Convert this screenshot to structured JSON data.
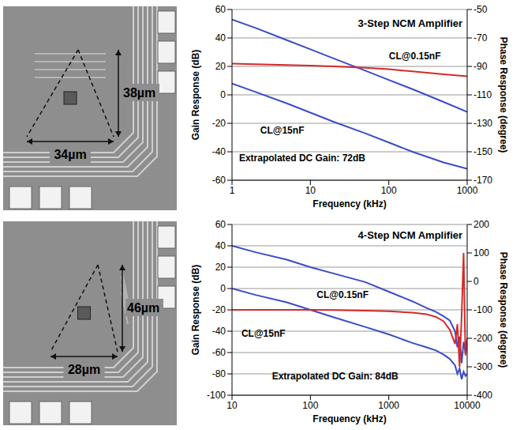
{
  "chart_data": [
    {
      "type": "line",
      "title": "3-Step NCM Amplifier",
      "x_label": "Frequency (kHz)",
      "y_label": "Gain Response (dB)",
      "y2_label": "Phase Response (degree)",
      "annotations": [
        "Extrapolated DC Gain: 72dB"
      ],
      "log": "x",
      "grid": true,
      "xlim": [
        1,
        1000
      ],
      "xticks": [
        1,
        10,
        100,
        1000
      ],
      "ylim": [
        -60,
        60
      ],
      "yticks": [
        -60,
        -40,
        -20,
        0,
        20,
        40,
        60
      ],
      "y2lim": [
        -170,
        -50
      ],
      "y2ticks": [
        -170,
        -150,
        -130,
        -110,
        -90,
        -70,
        -50
      ],
      "x": [
        1,
        2,
        5,
        10,
        20,
        50,
        100,
        200,
        500,
        1000
      ],
      "series": [
        {
          "name": "CL@0.15nF",
          "color": "#3b4bc8",
          "values": [
            53,
            47,
            38.5,
            32,
            25.5,
            17,
            10.5,
            4,
            -5,
            -12
          ]
        },
        {
          "name": "CL@15nF",
          "color": "#3b4bc8",
          "values": [
            8,
            2,
            -6,
            -12.5,
            -19,
            -27,
            -33.5,
            -40,
            -47.5,
            -52
          ]
        },
        {
          "color": "#d42a2a",
          "axis": "y2",
          "values": [
            -88,
            -88.5,
            -89,
            -89.5,
            -90,
            -91,
            -92,
            -93.5,
            -95.5,
            -97
          ]
        }
      ]
    },
    {
      "type": "line",
      "title": "4-Step NCM Amplifier",
      "x_label": "Frequency (kHz)",
      "y_label": "Gain Response (dB)",
      "y2_label": "Phase Response (degree)",
      "annotations": [
        "Extrapolated DC Gain: 84dB"
      ],
      "log": "x",
      "grid": true,
      "xlim": [
        10,
        10000
      ],
      "xticks": [
        10,
        100,
        1000,
        10000
      ],
      "ylim": [
        -100,
        60
      ],
      "yticks": [
        -100,
        -80,
        -60,
        -40,
        -20,
        0,
        20,
        40,
        60
      ],
      "y2lim": [
        -400,
        200
      ],
      "y2ticks": [
        -400,
        -300,
        -200,
        -100,
        0,
        100,
        200
      ],
      "x": [
        10,
        20,
        50,
        100,
        200,
        500,
        1000,
        2000,
        3000,
        4000,
        5000,
        6000,
        7000,
        7500,
        8000,
        8500,
        9000,
        9500,
        10000
      ],
      "series": [
        {
          "name": "CL@0.15nF",
          "color": "#3b4bc8",
          "values": [
            40,
            34,
            27,
            20,
            14,
            6,
            -3,
            -12,
            -18,
            -22,
            -26,
            -30,
            -40,
            -55,
            -45,
            -70,
            -50,
            -60,
            -55
          ]
        },
        {
          "name": "CL@15nF",
          "color": "#3b4bc8",
          "values": [
            0,
            -6,
            -13,
            -20,
            -27,
            -36,
            -43,
            -51,
            -55,
            -58,
            -62,
            -66,
            -72,
            -80,
            -75,
            -85,
            -78,
            -82,
            -80
          ]
        },
        {
          "color": "#d42a2a",
          "axis": "y2",
          "values": [
            -100,
            -100,
            -100,
            -100,
            -101,
            -103,
            -105,
            -110,
            -115,
            -125,
            -140,
            -170,
            -220,
            -150,
            -300,
            -120,
            100,
            -260,
            -200
          ]
        }
      ]
    }
  ],
  "micrographs": [
    {
      "height_label": "38µm",
      "width_label": "34µm"
    },
    {
      "height_label": "46µm",
      "width_label": "28µm"
    }
  ]
}
